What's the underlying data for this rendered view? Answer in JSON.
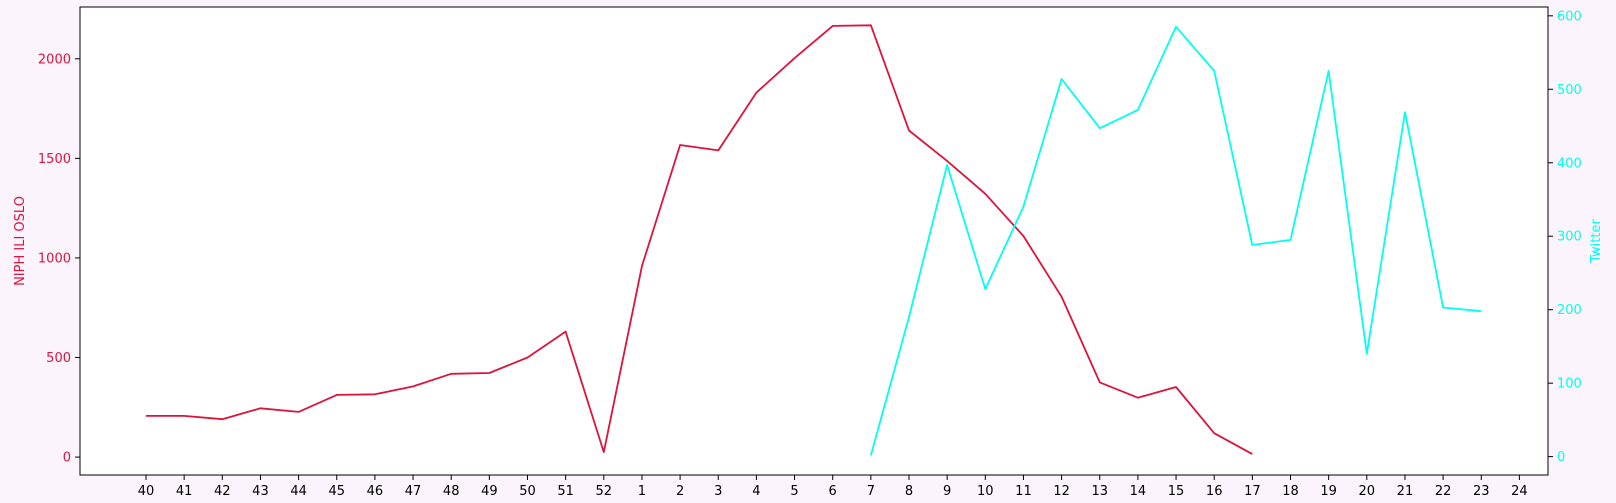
{
  "chart_data": {
    "type": "line",
    "title": "",
    "categories": [
      "40",
      "41",
      "42",
      "43",
      "44",
      "45",
      "46",
      "47",
      "48",
      "49",
      "50",
      "51",
      "52",
      "1",
      "2",
      "3",
      "4",
      "5",
      "6",
      "7",
      "8",
      "9",
      "10",
      "11",
      "12",
      "13",
      "14",
      "15",
      "16",
      "17",
      "18",
      "19",
      "20",
      "21",
      "22",
      "23",
      "24"
    ],
    "y_left": {
      "label": "NIPH ILI OSLO",
      "color": "#dc143c",
      "lim": [
        -90,
        2260
      ],
      "ticks": [
        0,
        500,
        1000,
        1500,
        2000
      ]
    },
    "y_right": {
      "label": "Twitter",
      "color": "#00ffee",
      "lim": [
        -25,
        612
      ],
      "ticks": [
        0,
        100,
        200,
        300,
        400,
        500,
        600
      ]
    },
    "series": [
      {
        "name": "NIPH ILI OSLO",
        "axis": "left",
        "color": "#dc143c",
        "values": [
          207,
          207,
          190,
          245,
          227,
          312,
          315,
          355,
          418,
          422,
          500,
          630,
          25,
          960,
          1567,
          1540,
          1830,
          2003,
          2165,
          2168,
          1640,
          1487,
          1322,
          1110,
          805,
          375,
          298,
          352,
          120,
          15,
          null,
          null,
          null,
          null,
          null,
          null,
          null
        ]
      },
      {
        "name": "Twitter",
        "axis": "right",
        "color": "#00ffee",
        "values": [
          null,
          null,
          null,
          null,
          null,
          null,
          null,
          null,
          null,
          null,
          null,
          null,
          null,
          null,
          null,
          null,
          null,
          null,
          null,
          2,
          190,
          397,
          228,
          340,
          514,
          447,
          472,
          585,
          525,
          288,
          295,
          525,
          140,
          469,
          203,
          198,
          null
        ]
      }
    ]
  }
}
